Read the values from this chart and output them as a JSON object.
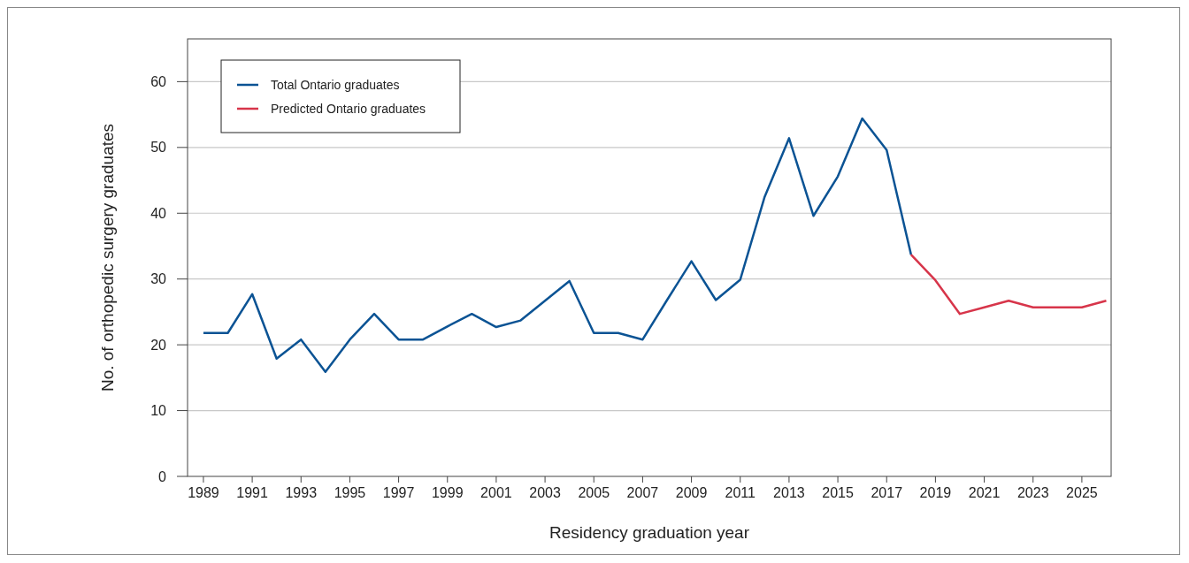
{
  "chart_data": {
    "type": "line",
    "xlabel": "Residency graduation year",
    "ylabel": "No. of orthopedic surgery graduates",
    "xlim": [
      1988.35,
      2026.2
    ],
    "xticks": [
      1989,
      1991,
      1993,
      1995,
      1997,
      1999,
      2001,
      2003,
      2005,
      2007,
      2009,
      2011,
      2013,
      2015,
      2017,
      2019,
      2021,
      2023,
      2025
    ],
    "ylim": [
      0,
      66.5
    ],
    "yticks": [
      0,
      10,
      20,
      30,
      40,
      50,
      60
    ],
    "grid": "y",
    "legend": "top left",
    "marker": "none",
    "line_style": "solid",
    "series": [
      {
        "name": "Total Ontario graduates",
        "color": "#0b5394",
        "x": [
          1989,
          1990,
          1991,
          1992,
          1993,
          1994,
          1995,
          1996,
          1997,
          1998,
          1999,
          2000,
          2001,
          2002,
          2003,
          2004,
          2005,
          2006,
          2007,
          2008,
          2009,
          2010,
          2011,
          2012,
          2013,
          2014,
          2015,
          2016,
          2017,
          2018
        ],
        "values": [
          21.8,
          21.8,
          27.7,
          17.9,
          20.8,
          15.9,
          20.8,
          24.7,
          20.8,
          20.8,
          22.8,
          24.7,
          22.7,
          23.7,
          26.7,
          29.7,
          21.8,
          21.8,
          20.8,
          26.8,
          32.7,
          26.8,
          29.9,
          42.5,
          51.4,
          39.6,
          45.6,
          54.4,
          49.6,
          33.7
        ]
      },
      {
        "name": "Predicted Ontario graduates",
        "color": "#d7354a",
        "x": [
          2018,
          2019,
          2020,
          2021,
          2022,
          2023,
          2024,
          2025,
          2026
        ],
        "values": [
          33.7,
          29.8,
          24.7,
          25.7,
          26.7,
          25.7,
          25.7,
          25.7,
          26.7
        ]
      }
    ]
  }
}
